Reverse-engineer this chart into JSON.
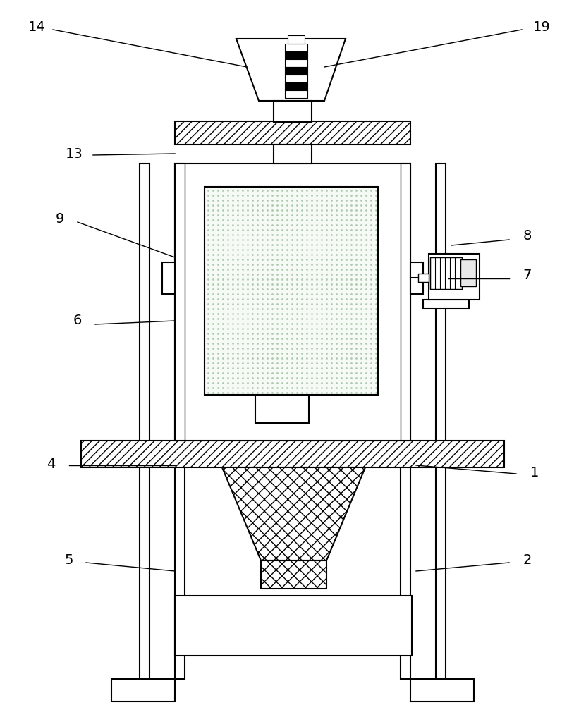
{
  "bg": "#ffffff",
  "lw": 1.5,
  "fs": 14,
  "labels": [
    "14",
    "19",
    "13",
    "9",
    "6",
    "8",
    "7",
    "4",
    "1",
    "5",
    "2"
  ],
  "label_ix": [
    52,
    768,
    105,
    85,
    110,
    748,
    748,
    72,
    758,
    98,
    748
  ],
  "label_iy": [
    38,
    38,
    218,
    310,
    455,
    335,
    390,
    658,
    670,
    795,
    795
  ],
  "leader_sx": [
    75,
    740,
    132,
    110,
    135,
    722,
    722,
    98,
    732,
    122,
    722
  ],
  "leader_sy": [
    42,
    42,
    220,
    315,
    460,
    340,
    395,
    660,
    672,
    798,
    798
  ],
  "leader_ex": [
    350,
    460,
    248,
    248,
    248,
    640,
    636,
    248,
    590,
    248,
    590
  ],
  "leader_ey": [
    95,
    95,
    218,
    365,
    455,
    348,
    395,
    660,
    660,
    810,
    810
  ]
}
